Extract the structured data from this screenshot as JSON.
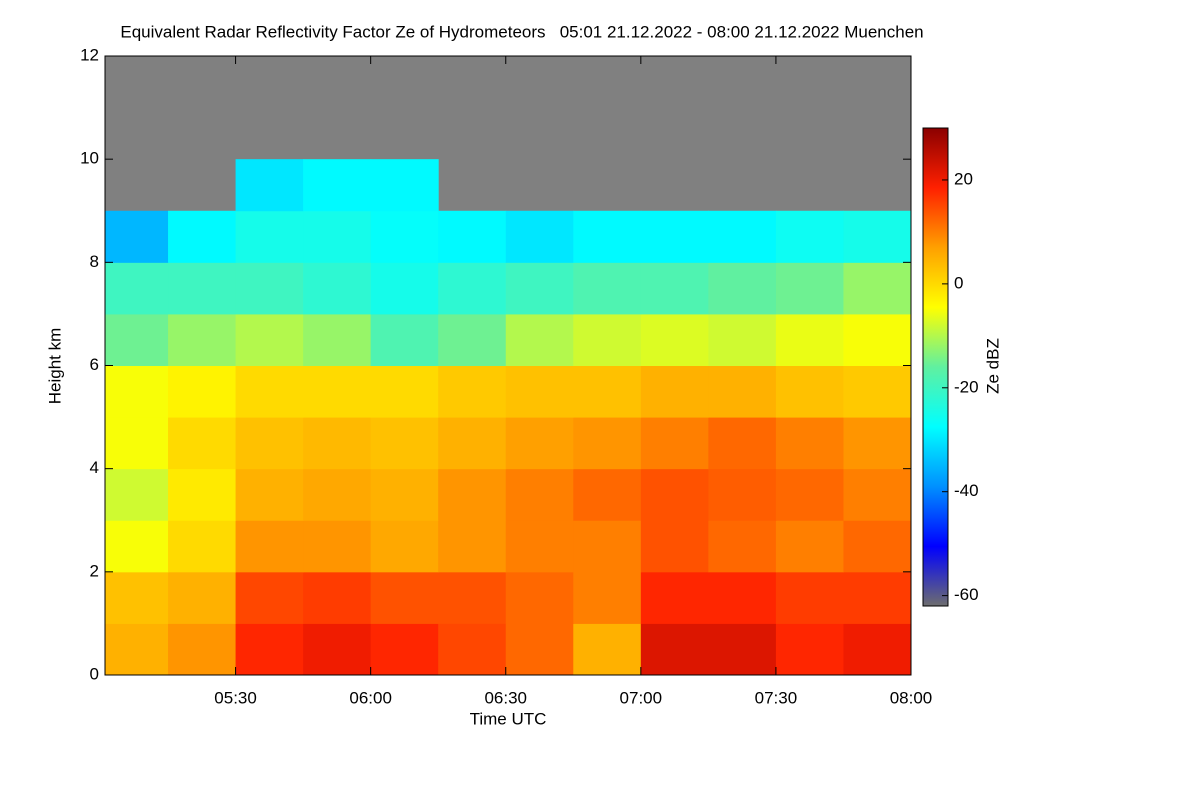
{
  "chart_data": {
    "type": "heatmap",
    "title": "Equivalent Radar Reflectivity Factor Ze of Hydrometeors   05:01 21.12.2022 - 08:00 21.12.2022 Muenchen",
    "x_label": "Time UTC",
    "y_label": "Height km",
    "colorbar_label": "Ze dBZ",
    "xlim": [
      301,
      480
    ],
    "xticks": [
      {
        "value": 330,
        "label": "05:30"
      },
      {
        "value": 360,
        "label": "06:00"
      },
      {
        "value": 390,
        "label": "06:30"
      },
      {
        "value": 420,
        "label": "07:00"
      },
      {
        "value": 450,
        "label": "07:30"
      },
      {
        "value": 480,
        "label": "08:00"
      }
    ],
    "ylim": [
      0,
      12
    ],
    "yticks": [
      0,
      2,
      4,
      6,
      8,
      10,
      12
    ],
    "clim": [
      -62,
      30
    ],
    "cticks": [
      -60,
      -40,
      -20,
      0,
      20
    ],
    "colorscale": [
      "#6e6e6e",
      "#0000ff",
      "#0090ff",
      "#00ffff",
      "#60f0a0",
      "#ffff00",
      "#ffa000",
      "#ff2000",
      "#8b0000"
    ],
    "background_color": "#808080",
    "x_bins": [
      301,
      315,
      330,
      345,
      360,
      375,
      390,
      405,
      420,
      435,
      450,
      465,
      480
    ],
    "y_bins": [
      0,
      1,
      2,
      3,
      4,
      5,
      6,
      7,
      8,
      9,
      10,
      11,
      12
    ],
    "values": [
      [
        5,
        8,
        18,
        20,
        18,
        15,
        12,
        5,
        22,
        22,
        18,
        20
      ],
      [
        3,
        5,
        15,
        16,
        14,
        14,
        12,
        10,
        18,
        18,
        16,
        16
      ],
      [
        -5,
        0,
        8,
        8,
        6,
        8,
        10,
        10,
        14,
        12,
        10,
        12
      ],
      [
        -8,
        -2,
        5,
        6,
        5,
        8,
        10,
        12,
        14,
        13,
        12,
        10
      ],
      [
        -5,
        0,
        3,
        4,
        3,
        5,
        7,
        8,
        10,
        12,
        10,
        8
      ],
      [
        -5,
        -3,
        0,
        0,
        0,
        2,
        3,
        3,
        5,
        5,
        3,
        2
      ],
      [
        -15,
        -12,
        -10,
        -12,
        -18,
        -15,
        -10,
        -8,
        -7,
        -8,
        -6,
        -5
      ],
      [
        -20,
        -20,
        -20,
        -22,
        -25,
        -22,
        -20,
        -18,
        -18,
        -16,
        -15,
        -12
      ],
      [
        -35,
        -28,
        -25,
        -25,
        -27,
        -28,
        -30,
        -28,
        -28,
        -28,
        -26,
        -25
      ],
      [
        null,
        null,
        -30,
        -28,
        -28,
        null,
        null,
        null,
        null,
        null,
        null,
        null
      ],
      [
        null,
        null,
        null,
        null,
        null,
        null,
        null,
        null,
        null,
        null,
        null,
        null
      ],
      [
        null,
        null,
        null,
        null,
        null,
        null,
        null,
        null,
        null,
        null,
        null,
        null
      ]
    ]
  }
}
